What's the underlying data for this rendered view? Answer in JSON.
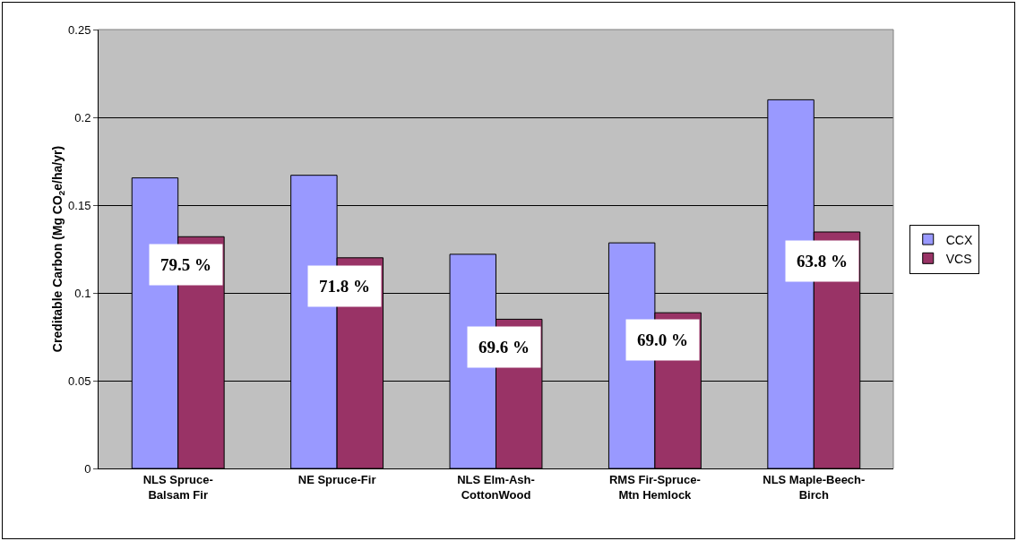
{
  "chart_data": {
    "type": "bar",
    "ylabel": "Creditable Carbon (Mg CO$_{2}$e/ha/yr)",
    "categories": [
      "NLS Spruce-\nBalsam Fir",
      "NE Spruce-Fir",
      "NLS Elm-Ash-\nCottonWood",
      "RMS Fir-Spruce-\nMtn Hemlock",
      "NLS Maple-Beech-\nBirch"
    ],
    "series": [
      {
        "name": "CCX",
        "color": "#9999ff",
        "values": [
          0.1655,
          0.167,
          0.122,
          0.1285,
          0.21
        ]
      },
      {
        "name": "VCS",
        "color": "#993366",
        "values": [
          0.132,
          0.12,
          0.085,
          0.0887,
          0.1347
        ]
      }
    ],
    "annotations": [
      {
        "text": "79.5 %",
        "x": "NLS Spruce-\nBalsam Fir",
        "y": 0.128
      },
      {
        "text": "71.8 %",
        "x": "NE Spruce-Fir",
        "y": 0.116
      },
      {
        "text": "69.6 %",
        "x": "NLS Elm-Ash-\nCottonWood",
        "y": 0.081
      },
      {
        "text": "69.0 %",
        "x": "RMS Fir-Spruce-\nMtn Hemlock",
        "y": 0.085
      },
      {
        "text": "63.8 %",
        "x": "NLS Maple-Beech-\nBirch",
        "y": 0.13
      }
    ],
    "ylim": [
      0,
      0.25
    ],
    "yticks": [
      0,
      0.05,
      0.1,
      0.15,
      0.2,
      0.25
    ],
    "grid": "y",
    "legend": "right"
  }
}
